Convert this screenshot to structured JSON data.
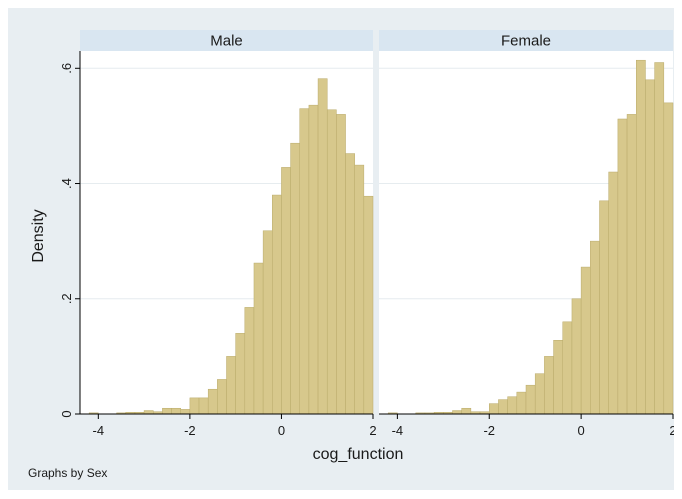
{
  "chart_data": {
    "type": "bar",
    "ylabel": "Density",
    "xlabel": "cog_function",
    "footnote": "Graphs by Sex",
    "xlim": [
      -4.4,
      2.0
    ],
    "ylim": [
      0,
      0.63
    ],
    "x_ticks": [
      -4,
      -2,
      0,
      2
    ],
    "x_tick_labels": [
      "-4",
      "-2",
      "0",
      "2"
    ],
    "y_ticks": [
      0,
      0.2,
      0.4,
      0.6
    ],
    "y_tick_labels": [
      "0",
      ".2",
      ".4",
      ".6"
    ],
    "grid": true,
    "bar_color": "#d7c88c",
    "bar_edge_color": "#b9aa6a",
    "panel_header_color": "#d9e6f1",
    "background_color": "#e8eef2",
    "panels": [
      {
        "name": "Male",
        "bins": [
          {
            "x0": -4.2,
            "x1": -4.0,
            "y": 0.002
          },
          {
            "x0": -3.6,
            "x1": -3.4,
            "y": 0.002
          },
          {
            "x0": -3.4,
            "x1": -3.2,
            "y": 0.003
          },
          {
            "x0": -3.2,
            "x1": -3.0,
            "y": 0.003
          },
          {
            "x0": -3.0,
            "x1": -2.8,
            "y": 0.006
          },
          {
            "x0": -2.8,
            "x1": -2.6,
            "y": 0.004
          },
          {
            "x0": -2.6,
            "x1": -2.4,
            "y": 0.01
          },
          {
            "x0": -2.4,
            "x1": -2.2,
            "y": 0.01
          },
          {
            "x0": -2.2,
            "x1": -2.0,
            "y": 0.008
          },
          {
            "x0": -2.0,
            "x1": -1.8,
            "y": 0.028
          },
          {
            "x0": -1.8,
            "x1": -1.6,
            "y": 0.028
          },
          {
            "x0": -1.6,
            "x1": -1.4,
            "y": 0.043
          },
          {
            "x0": -1.4,
            "x1": -1.2,
            "y": 0.06
          },
          {
            "x0": -1.2,
            "x1": -1.0,
            "y": 0.1
          },
          {
            "x0": -1.0,
            "x1": -0.8,
            "y": 0.14
          },
          {
            "x0": -0.8,
            "x1": -0.6,
            "y": 0.185
          },
          {
            "x0": -0.6,
            "x1": -0.4,
            "y": 0.262
          },
          {
            "x0": -0.4,
            "x1": -0.2,
            "y": 0.318
          },
          {
            "x0": -0.2,
            "x1": 0.0,
            "y": 0.38
          },
          {
            "x0": 0.0,
            "x1": 0.2,
            "y": 0.428
          },
          {
            "x0": 0.2,
            "x1": 0.4,
            "y": 0.47
          },
          {
            "x0": 0.4,
            "x1": 0.6,
            "y": 0.53
          },
          {
            "x0": 0.6,
            "x1": 0.8,
            "y": 0.536
          },
          {
            "x0": 0.8,
            "x1": 1.0,
            "y": 0.582
          },
          {
            "x0": 1.0,
            "x1": 1.2,
            "y": 0.528
          },
          {
            "x0": 1.2,
            "x1": 1.4,
            "y": 0.52
          },
          {
            "x0": 1.4,
            "x1": 1.6,
            "y": 0.452
          },
          {
            "x0": 1.6,
            "x1": 1.8,
            "y": 0.432
          },
          {
            "x0": 1.8,
            "x1": 2.0,
            "y": 0.378
          }
        ]
      },
      {
        "name": "Female",
        "bins": [
          {
            "x0": -4.2,
            "x1": -4.0,
            "y": 0.002
          },
          {
            "x0": -3.6,
            "x1": -3.4,
            "y": 0.002
          },
          {
            "x0": -3.4,
            "x1": -3.2,
            "y": 0.002
          },
          {
            "x0": -3.2,
            "x1": -3.0,
            "y": 0.003
          },
          {
            "x0": -3.0,
            "x1": -2.8,
            "y": 0.003
          },
          {
            "x0": -2.8,
            "x1": -2.6,
            "y": 0.006
          },
          {
            "x0": -2.6,
            "x1": -2.4,
            "y": 0.01
          },
          {
            "x0": -2.4,
            "x1": -2.2,
            "y": 0.004
          },
          {
            "x0": -2.2,
            "x1": -2.0,
            "y": 0.004
          },
          {
            "x0": -2.0,
            "x1": -1.8,
            "y": 0.018
          },
          {
            "x0": -1.8,
            "x1": -1.6,
            "y": 0.025
          },
          {
            "x0": -1.6,
            "x1": -1.4,
            "y": 0.03
          },
          {
            "x0": -1.4,
            "x1": -1.2,
            "y": 0.038
          },
          {
            "x0": -1.2,
            "x1": -1.0,
            "y": 0.05
          },
          {
            "x0": -1.0,
            "x1": -0.8,
            "y": 0.07
          },
          {
            "x0": -0.8,
            "x1": -0.6,
            "y": 0.1
          },
          {
            "x0": -0.6,
            "x1": -0.4,
            "y": 0.128
          },
          {
            "x0": -0.4,
            "x1": -0.2,
            "y": 0.16
          },
          {
            "x0": -0.2,
            "x1": 0.0,
            "y": 0.2
          },
          {
            "x0": 0.0,
            "x1": 0.2,
            "y": 0.255
          },
          {
            "x0": 0.2,
            "x1": 0.4,
            "y": 0.3
          },
          {
            "x0": 0.4,
            "x1": 0.6,
            "y": 0.37
          },
          {
            "x0": 0.6,
            "x1": 0.8,
            "y": 0.42
          },
          {
            "x0": 0.8,
            "x1": 1.0,
            "y": 0.512
          },
          {
            "x0": 1.0,
            "x1": 1.2,
            "y": 0.52
          },
          {
            "x0": 1.2,
            "x1": 1.4,
            "y": 0.614
          },
          {
            "x0": 1.4,
            "x1": 1.6,
            "y": 0.58
          },
          {
            "x0": 1.6,
            "x1": 1.8,
            "y": 0.61
          },
          {
            "x0": 1.8,
            "x1": 2.0,
            "y": 0.54
          }
        ]
      }
    ]
  }
}
